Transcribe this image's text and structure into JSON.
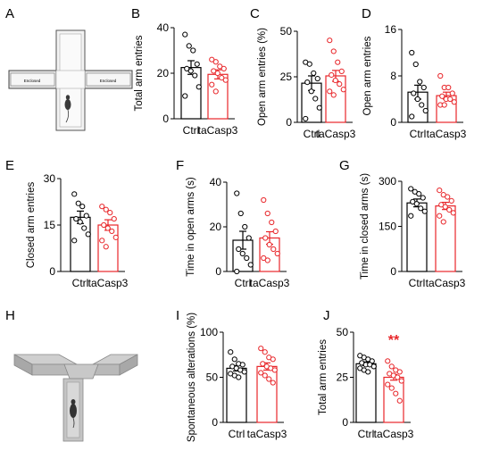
{
  "panels": [
    {
      "letter": "A"
    },
    {
      "letter": "B"
    },
    {
      "letter": "C"
    },
    {
      "letter": "D"
    },
    {
      "letter": "E"
    },
    {
      "letter": "F"
    },
    {
      "letter": "G"
    },
    {
      "letter": "H"
    },
    {
      "letter": "I"
    },
    {
      "letter": "J"
    }
  ],
  "maze_plus": {
    "arm_labels": [
      "Enclosed",
      "Enclosed"
    ]
  },
  "colors": {
    "ctrl": "#000000",
    "casp": "#e8262a"
  },
  "chart_data": [
    {
      "panel": "B",
      "type": "bar",
      "ylabel": "Total arm entries",
      "categories": [
        "Ctrl",
        "taCasp3"
      ],
      "ylim": [
        0,
        40
      ],
      "yticks": [
        0,
        20,
        40
      ],
      "series": [
        {
          "name": "Ctrl",
          "mean": 22.5,
          "sem": 3,
          "points": [
            37,
            32,
            30,
            24,
            22,
            21,
            19,
            14,
            10
          ]
        },
        {
          "name": "taCasp3",
          "mean": 19.5,
          "sem": 2,
          "points": [
            26,
            25,
            23,
            22,
            21,
            20,
            18,
            17,
            15,
            12
          ]
        }
      ]
    },
    {
      "panel": "C",
      "type": "bar",
      "ylabel": "Open arm entries (%)",
      "categories": [
        "Ctrl",
        "taCasp3"
      ],
      "ylim": [
        0,
        50
      ],
      "yticks": [
        0,
        25,
        50
      ],
      "series": [
        {
          "name": "Ctrl",
          "mean": 21.5,
          "sem": 4,
          "points": [
            33,
            32,
            27,
            24,
            22,
            17,
            13,
            8,
            2
          ]
        },
        {
          "name": "taCasp3",
          "mean": 25.5,
          "sem": 3,
          "points": [
            45,
            39,
            33,
            28,
            26,
            23,
            21,
            18,
            17,
            15
          ]
        }
      ]
    },
    {
      "panel": "D",
      "type": "bar",
      "ylabel": "Open arm entries",
      "categories": [
        "Ctrl",
        "taCasp3"
      ],
      "ylim": [
        0,
        16
      ],
      "yticks": [
        0,
        8,
        16
      ],
      "series": [
        {
          "name": "Ctrl",
          "mean": 5.2,
          "sem": 1.2,
          "points": [
            12,
            10,
            7,
            6,
            5,
            4,
            3,
            2,
            1
          ]
        },
        {
          "name": "taCasp3",
          "mean": 4.6,
          "sem": 0.6,
          "points": [
            8,
            6,
            6,
            5,
            4.5,
            4,
            4,
            3.5,
            3,
            3
          ]
        }
      ]
    },
    {
      "panel": "E",
      "type": "bar",
      "ylabel": "Closed arm entries",
      "categories": [
        "Ctrl",
        "taCasp3"
      ],
      "ylim": [
        0,
        30
      ],
      "yticks": [
        0,
        15,
        30
      ],
      "series": [
        {
          "name": "Ctrl",
          "mean": 17.5,
          "sem": 2,
          "points": [
            25,
            22,
            21,
            18,
            17,
            16,
            14,
            12,
            10
          ]
        },
        {
          "name": "taCasp3",
          "mean": 15,
          "sem": 1.7,
          "points": [
            21,
            20,
            19,
            17,
            15,
            14,
            13,
            11,
            10,
            8
          ]
        }
      ]
    },
    {
      "panel": "F",
      "type": "bar",
      "ylabel": "Time in open arms (s)",
      "categories": [
        "Ctrl",
        "taCasp3"
      ],
      "ylim": [
        0,
        40
      ],
      "yticks": [
        0,
        20,
        40
      ],
      "series": [
        {
          "name": "Ctrl",
          "mean": 14,
          "sem": 4,
          "points": [
            35,
            26,
            20,
            15,
            10,
            8,
            6,
            3,
            0
          ]
        },
        {
          "name": "taCasp3",
          "mean": 15,
          "sem": 2.8,
          "points": [
            32,
            26,
            22,
            18,
            15,
            12,
            10,
            8,
            6,
            5
          ]
        }
      ]
    },
    {
      "panel": "G",
      "type": "bar",
      "ylabel": "Time in closed arms (s)",
      "categories": [
        "Ctrl",
        "taCasp3"
      ],
      "ylim": [
        0,
        300
      ],
      "yticks": [
        0,
        150,
        300
      ],
      "series": [
        {
          "name": "Ctrl",
          "mean": 228,
          "sem": 13,
          "points": [
            275,
            265,
            258,
            245,
            232,
            225,
            210,
            200,
            185
          ]
        },
        {
          "name": "taCasp3",
          "mean": 218,
          "sem": 12,
          "points": [
            270,
            255,
            248,
            235,
            222,
            215,
            205,
            195,
            185,
            165
          ]
        }
      ]
    },
    {
      "panel": "I",
      "type": "bar",
      "ylabel": "Spontaneous alterations (%)",
      "categories": [
        "Ctrl",
        "taCasp3"
      ],
      "ylim": [
        0,
        100
      ],
      "yticks": [
        0,
        50,
        100
      ],
      "series": [
        {
          "name": "Ctrl",
          "mean": 60,
          "sem": 3,
          "points": [
            78,
            70,
            65,
            64,
            62,
            60,
            58,
            56,
            54,
            52,
            50
          ]
        },
        {
          "name": "taCasp3",
          "mean": 62,
          "sem": 4,
          "points": [
            82,
            78,
            72,
            70,
            65,
            62,
            60,
            58,
            55,
            52,
            48,
            44
          ]
        }
      ]
    },
    {
      "panel": "J",
      "type": "bar",
      "ylabel": "Total arm entries",
      "categories": [
        "Ctrl",
        "taCasp3"
      ],
      "ylim": [
        0,
        50
      ],
      "yticks": [
        0,
        25,
        50
      ],
      "annotation": "**",
      "series": [
        {
          "name": "Ctrl",
          "mean": 32.5,
          "sem": 1,
          "points": [
            37,
            36,
            35,
            34,
            33,
            32,
            32,
            31,
            30,
            29,
            28
          ]
        },
        {
          "name": "taCasp3",
          "mean": 25,
          "sem": 1.6,
          "points": [
            34,
            31,
            29,
            28,
            27,
            26,
            25,
            23,
            21,
            19,
            16,
            12
          ]
        }
      ]
    }
  ]
}
